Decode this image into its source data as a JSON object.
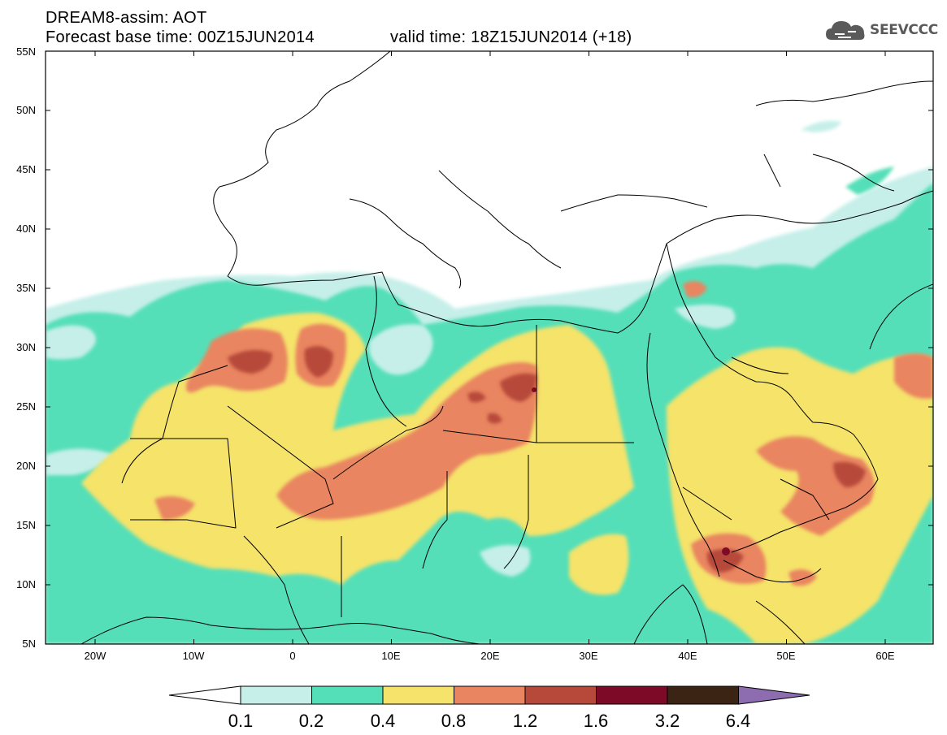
{
  "header": {
    "title": "DREAM8-assim: AOT",
    "base_time": "Forecast base time: 00Z15JUN2014",
    "valid_time": "valid time: 18Z15JUN2014 (+18)"
  },
  "logo": {
    "text": "SEEVCCC",
    "icon": "cloud-icon"
  },
  "map": {
    "lat_labels": [
      "55N",
      "50N",
      "45N",
      "40N",
      "35N",
      "30N",
      "25N",
      "20N",
      "15N",
      "10N",
      "5N"
    ],
    "lon_labels": [
      "20W",
      "10W",
      "0",
      "10E",
      "20E",
      "30E",
      "40E",
      "50E",
      "60E"
    ]
  },
  "colorbar": {
    "labels": [
      "0.1",
      "0.2",
      "0.4",
      "0.8",
      "1.2",
      "1.6",
      "3.2",
      "6.4"
    ],
    "colors": [
      "#ffffff",
      "#c6efe9",
      "#55dfb8",
      "#f5e36b",
      "#e98560",
      "#b7493b",
      "#7d0a27",
      "#3c2414",
      "#8d6daf"
    ]
  }
}
